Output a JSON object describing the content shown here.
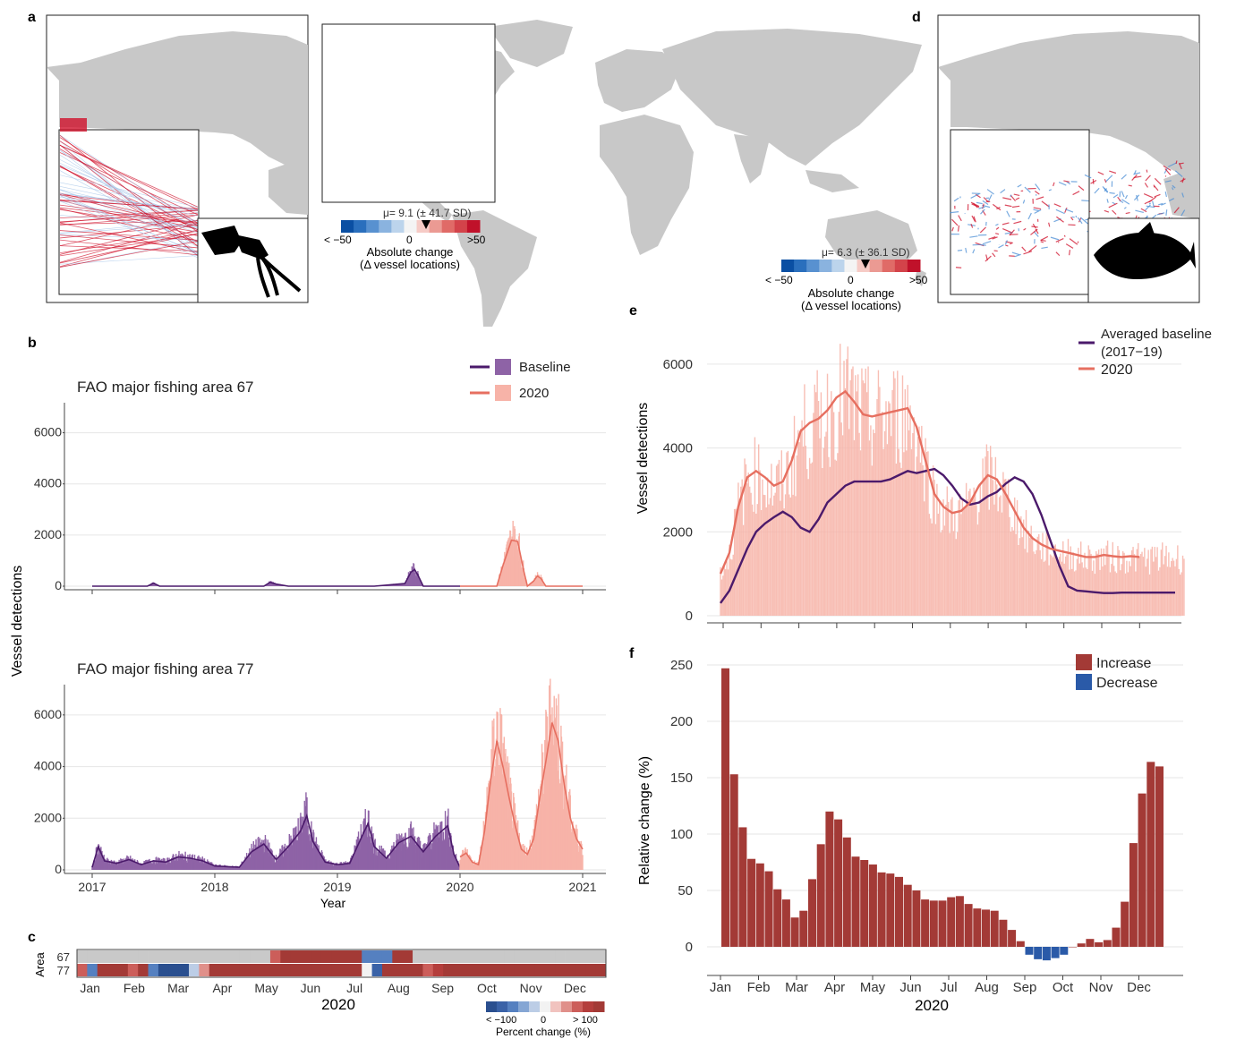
{
  "colors": {
    "baseline": "#4b1a6b",
    "baseline_fill": "#8e63a6",
    "y2020": "#e66f60",
    "y2020_fill": "#f7b3a8",
    "land": "#c8c8c8",
    "increase": "#a33a36",
    "decrease": "#2a5aa8",
    "squid_tracks": "#d0102a",
    "blue_tracks": "#4d8fd6"
  },
  "panels": {
    "a": {
      "letter": "a",
      "mu_text": "μ= 9.1 (± 41.7 SD)",
      "scale_min": "< −50",
      "scale_zero": "0",
      "scale_max": ">50",
      "scale_title_1": "Absolute change",
      "scale_title_2": "(Δ vessel locations)",
      "mu_value": 9.1
    },
    "d": {
      "letter": "d",
      "mu_text": "μ= 6.3 (± 36.1 SD)",
      "scale_min": "< −50",
      "scale_zero": "0",
      "scale_max": ">50",
      "scale_title_1": "Absolute change",
      "scale_title_2": "(Δ vessel locations)",
      "mu_value": 6.3
    },
    "b": {
      "letter": "b",
      "ylabel": "Vessel detections",
      "xlabel": "Year"
    },
    "c": {
      "letter": "c",
      "ylabel": "Area",
      "xlabel": "2020",
      "scale_min": "< −100",
      "scale_zero": "0",
      "scale_max": "> 100",
      "scale_title": "Percent change (%)"
    },
    "e": {
      "letter": "e",
      "ylabel": "Vessel detections"
    },
    "f": {
      "letter": "f",
      "ylabel": "Relative change (%)",
      "xlabel": "2020"
    }
  },
  "chart_data": [
    {
      "id": "b1",
      "type": "line",
      "title": "FAO major fishing area 67",
      "legend": [
        "Baseline",
        "2020"
      ],
      "legend_position": "top-right",
      "xlim": [
        2017,
        2021
      ],
      "xticks": [],
      "ylim": [
        0,
        7000
      ],
      "yticks": [
        "0",
        "2000",
        "4000",
        "6000"
      ],
      "series": [
        {
          "name": "Baseline",
          "x": [
            2017.0,
            2017.45,
            2017.5,
            2017.55,
            2018.4,
            2018.45,
            2018.5,
            2018.6,
            2019.3,
            2019.55,
            2019.6,
            2019.63,
            2019.66,
            2019.7,
            2020.0
          ],
          "values": [
            0,
            0,
            120,
            0,
            0,
            150,
            80,
            0,
            0,
            100,
            550,
            650,
            400,
            0,
            0
          ]
        },
        {
          "name": "2020",
          "x": [
            2020.0,
            2020.3,
            2020.35,
            2020.42,
            2020.47,
            2020.52,
            2020.55,
            2020.6,
            2020.63,
            2020.66,
            2020.7,
            2021.0
          ],
          "values": [
            0,
            0,
            800,
            1800,
            1750,
            600,
            0,
            200,
            400,
            300,
            0,
            0
          ]
        }
      ]
    },
    {
      "id": "b2",
      "type": "line",
      "title": "FAO major fishing area 77",
      "xlim": [
        2017,
        2021
      ],
      "xticks": [
        "2017",
        "2018",
        "2019",
        "2020",
        "2021"
      ],
      "xlabel": "Year",
      "ylim": [
        0,
        7000
      ],
      "yticks": [
        "0",
        "2000",
        "4000",
        "6000"
      ],
      "series": [
        {
          "name": "Baseline",
          "x": [
            2017.0,
            2017.05,
            2017.1,
            2017.2,
            2017.3,
            2017.4,
            2017.5,
            2017.6,
            2017.7,
            2017.8,
            2017.9,
            2018.0,
            2018.2,
            2018.3,
            2018.4,
            2018.5,
            2018.6,
            2018.7,
            2018.75,
            2018.8,
            2018.9,
            2019.0,
            2019.1,
            2019.2,
            2019.25,
            2019.3,
            2019.4,
            2019.5,
            2019.6,
            2019.7,
            2019.8,
            2019.9,
            2019.95,
            2020.0
          ],
          "values": [
            100,
            900,
            350,
            250,
            400,
            200,
            350,
            300,
            500,
            450,
            350,
            150,
            100,
            700,
            1000,
            400,
            900,
            1500,
            2100,
            1100,
            300,
            200,
            250,
            1300,
            1800,
            900,
            450,
            1050,
            1300,
            700,
            1300,
            1700,
            600,
            100
          ]
        },
        {
          "name": "2020",
          "x": [
            2020.0,
            2020.05,
            2020.1,
            2020.15,
            2020.2,
            2020.25,
            2020.3,
            2020.35,
            2020.4,
            2020.45,
            2020.5,
            2020.55,
            2020.6,
            2020.65,
            2020.7,
            2020.75,
            2020.8,
            2020.85,
            2020.9,
            2020.95,
            2021.0
          ],
          "values": [
            500,
            650,
            300,
            200,
            1500,
            3500,
            5000,
            4000,
            2800,
            1700,
            800,
            600,
            1200,
            2800,
            4200,
            5700,
            5000,
            3300,
            2000,
            1200,
            800
          ]
        }
      ]
    },
    {
      "id": "c",
      "type": "heatmap",
      "rows": [
        "67",
        "77"
      ],
      "xticks": [
        "Jan",
        "Feb",
        "Mar",
        "Apr",
        "May",
        "Jun",
        "Jul",
        "Aug",
        "Sep",
        "Oct",
        "Nov",
        "Dec"
      ],
      "columns_weeks": 52,
      "values": {
        "67": "weeks 1-19 no data; week 20 ~+50%; weeks 21-28 >100%; weeks 29-31 ~−70%; weeks 32-33 >100%; weeks 34-52 no data",
        "77": [
          60,
          -60,
          100,
          100,
          100,
          50,
          100,
          -60,
          -100,
          -100,
          -100,
          -20,
          30,
          100,
          100,
          100,
          100,
          100,
          100,
          100,
          100,
          100,
          100,
          100,
          100,
          100,
          100,
          100,
          -10,
          -80,
          100,
          100,
          100,
          100,
          60,
          80,
          100,
          100,
          100,
          100,
          100,
          100,
          100,
          100,
          100,
          100,
          100,
          100,
          100,
          100,
          100,
          100
        ]
      },
      "scale": [
        -100,
        100
      ]
    },
    {
      "id": "e",
      "type": "line",
      "legend": [
        "Averaged baseline (2017−19)",
        "2020"
      ],
      "legend_position": "top-right",
      "ylim": [
        0,
        7000
      ],
      "yticks": [
        "0",
        "2000",
        "4000",
        "6000"
      ],
      "x_unit": "week of 2020",
      "series": [
        {
          "name": "Averaged baseline (2017−19)",
          "x": [
            1,
            2,
            3,
            4,
            5,
            6,
            7,
            8,
            9,
            10,
            11,
            12,
            13,
            14,
            15,
            16,
            17,
            18,
            19,
            20,
            21,
            22,
            23,
            24,
            25,
            26,
            27,
            28,
            29,
            30,
            31,
            32,
            33,
            34,
            35,
            36,
            37,
            38,
            39,
            40,
            41,
            42,
            43,
            44,
            45,
            46,
            47,
            48,
            49,
            50,
            51,
            52
          ],
          "values": [
            300,
            600,
            1100,
            1600,
            2000,
            2200,
            2350,
            2480,
            2350,
            2100,
            2000,
            2300,
            2700,
            2900,
            3100,
            3200,
            3200,
            3200,
            3200,
            3250,
            3350,
            3450,
            3400,
            3450,
            3500,
            3350,
            3100,
            2800,
            2650,
            2700,
            2850,
            2950,
            3150,
            3300,
            3200,
            2900,
            2400,
            1800,
            1200,
            700,
            600,
            580,
            560,
            540,
            540,
            550,
            550,
            550,
            550,
            550,
            550,
            550
          ]
        },
        {
          "name": "2020",
          "x": [
            1,
            2,
            3,
            4,
            5,
            6,
            7,
            8,
            9,
            10,
            11,
            12,
            13,
            14,
            15,
            16,
            17,
            18,
            19,
            20,
            21,
            22,
            23,
            24,
            25,
            26,
            27,
            28,
            29,
            30,
            31,
            32,
            33,
            34,
            35,
            36,
            37,
            38,
            39,
            40,
            41,
            42,
            43,
            44,
            45,
            46,
            47,
            48
          ],
          "values": [
            1000,
            1500,
            2600,
            3300,
            3450,
            3300,
            3100,
            3200,
            3700,
            4400,
            4600,
            4700,
            4900,
            5200,
            5350,
            5100,
            4800,
            4750,
            4800,
            4850,
            4900,
            4950,
            4500,
            3700,
            2900,
            2600,
            2450,
            2500,
            2700,
            3100,
            3350,
            3250,
            2900,
            2500,
            2100,
            1850,
            1700,
            1600,
            1550,
            1500,
            1450,
            1400,
            1400,
            1450,
            1420,
            1400,
            1420,
            1400
          ]
        }
      ]
    },
    {
      "id": "f",
      "type": "bar",
      "legend": [
        "Increase",
        "Decrease"
      ],
      "legend_position": "top-right",
      "xticks": [
        "Jan",
        "Feb",
        "Mar",
        "Apr",
        "May",
        "Jun",
        "Jul",
        "Aug",
        "Sep",
        "Oct",
        "Nov",
        "Dec"
      ],
      "xlabel": "2020",
      "ylabel": "Relative change (%)",
      "ylim": [
        -15,
        255
      ],
      "yticks": [
        "0",
        "50",
        "100",
        "150",
        "200",
        "250"
      ],
      "values": [
        247,
        153,
        106,
        78,
        74,
        67,
        51,
        42,
        26,
        32,
        60,
        91,
        120,
        113,
        97,
        80,
        77,
        73,
        66,
        65,
        62,
        55,
        50,
        42,
        41,
        41,
        44,
        45,
        38,
        34,
        33,
        32,
        24,
        15,
        5,
        -7,
        -11,
        -12,
        -10,
        -7,
        0,
        3,
        7,
        4,
        6,
        17,
        40,
        92,
        136,
        164,
        160
      ]
    }
  ]
}
